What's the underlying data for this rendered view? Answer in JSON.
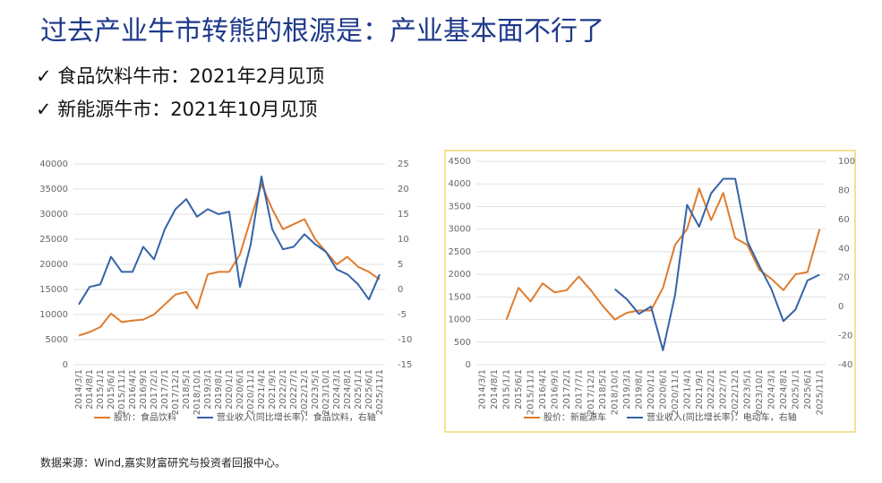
{
  "slide": {
    "title": "过去产业牛市转熊的根源是：产业基本面不行了",
    "bullets": [
      "✓ 食品饮料牛市：2021年2月见顶",
      "✓ 新能源牛市：2021年10月见顶"
    ],
    "source": "数据来源：Wind,嘉实财富研究与投资者回报中心。"
  },
  "chart_data": [
    {
      "type": "line",
      "categories": [
        "2014/3/1",
        "2014/8/1",
        "2015/1/1",
        "2015/6/1",
        "2015/11/1",
        "2016/4/1",
        "2016/9/1",
        "2017/2/1",
        "2017/7/1",
        "2017/12/1",
        "2018/5/1",
        "2018/10/1",
        "2019/3/1",
        "2019/8/1",
        "2020/1/1",
        "2020/6/1",
        "2020/11/1",
        "2021/4/1",
        "2021/9/1",
        "2022/2/1",
        "2022/7/1",
        "2022/12/1",
        "2023/5/1",
        "2023/10/1",
        "2024/3/1",
        "2024/8/1",
        "2025/1/1",
        "2025/6/1",
        "2025/11/1"
      ],
      "series": [
        {
          "name": "股价：食品饮料",
          "color": "#e07b2d",
          "values": [
            5800,
            6500,
            7500,
            10200,
            8500,
            8800,
            9000,
            10000,
            12000,
            14000,
            14500,
            11200,
            18000,
            18500,
            18500,
            22000,
            29000,
            36000,
            31000,
            27000,
            28000,
            29000,
            25000,
            22500,
            20000,
            21500,
            19500,
            18500,
            17000
          ]
        },
        {
          "name": "营业收入(同比增长率)：食品饮料，右轴",
          "color": "#3563a8",
          "axis": "y2",
          "values": [
            -3,
            0.5,
            1,
            6.5,
            3.5,
            3.5,
            8.5,
            6,
            12,
            16,
            18,
            14.5,
            16,
            15,
            15.5,
            0.5,
            9,
            22.5,
            12,
            8,
            8.5,
            11,
            9,
            7.5,
            4,
            3,
            1,
            -2,
            3
          ]
        }
      ],
      "ylim": [
        0,
        40000
      ],
      "yticks": [
        0,
        5000,
        10000,
        15000,
        20000,
        25000,
        30000,
        35000,
        40000
      ],
      "y2lim": [
        -15,
        25
      ],
      "y2ticks": [
        -15,
        -10,
        -5,
        0,
        5,
        10,
        15,
        20,
        25
      ],
      "grid": true
    },
    {
      "type": "line",
      "categories": [
        "2014/3/1",
        "2014/8/1",
        "2015/1/1",
        "2015/6/1",
        "2015/11/1",
        "2016/4/1",
        "2016/9/1",
        "2017/2/1",
        "2017/7/1",
        "2017/12/1",
        "2018/5/1",
        "2018/10/1",
        "2019/3/1",
        "2019/8/1",
        "2020/1/1",
        "2020/6/1",
        "2020/11/1",
        "2021/4/1",
        "2021/9/1",
        "2022/2/1",
        "2022/7/1",
        "2022/12/1",
        "2023/5/1",
        "2023/10/1",
        "2024/3/1",
        "2024/8/1",
        "2025/1/1",
        "2025/6/1",
        "2025/11/1"
      ],
      "series": [
        {
          "name": "股价：新能源车",
          "color": "#e07b2d",
          "values": [
            null,
            null,
            1000,
            1700,
            1400,
            1800,
            1600,
            1650,
            1950,
            1650,
            1300,
            1000,
            1150,
            1200,
            1200,
            1700,
            2650,
            3000,
            3900,
            3200,
            3800,
            2800,
            2650,
            2100,
            1900,
            1650,
            2000,
            2050,
            3000
          ]
        },
        {
          "name": "营业收入(同比增长率)：电动车，右轴",
          "color": "#3563a8",
          "axis": "y2",
          "values": [
            null,
            null,
            null,
            null,
            null,
            null,
            null,
            null,
            null,
            null,
            null,
            12,
            5,
            -5,
            0,
            -30,
            8,
            70,
            55,
            78,
            88,
            88,
            45,
            28,
            12,
            -10,
            -2,
            18,
            22
          ]
        }
      ],
      "ylim": [
        0,
        4500
      ],
      "yticks": [
        0,
        500,
        1000,
        1500,
        2000,
        2500,
        3000,
        3500,
        4000,
        4500
      ],
      "y2lim": [
        -40,
        100
      ],
      "y2ticks": [
        -40,
        -20,
        0,
        20,
        40,
        60,
        80,
        100
      ],
      "grid": true
    }
  ]
}
